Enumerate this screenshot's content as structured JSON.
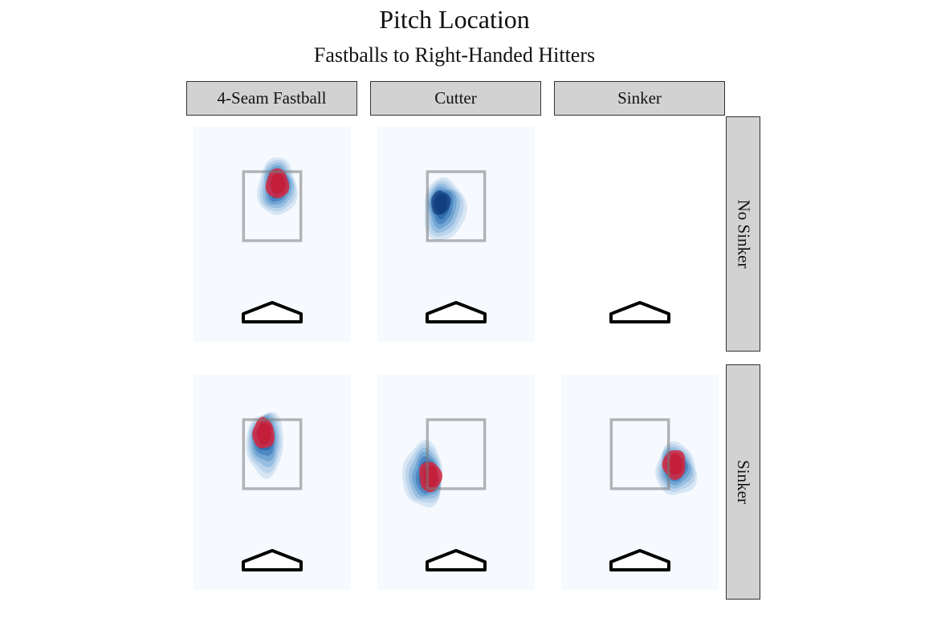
{
  "title": "Pitch Location",
  "subtitle": "Fastballs to Right-Handed Hitters",
  "col_labels": [
    "4-Seam Fastball",
    "Cutter",
    "Sinker"
  ],
  "row_labels": [
    "No Sinker",
    "Sinker"
  ],
  "colors": {
    "density_low": "#c6dbef",
    "density_mid": "#4a84c0",
    "density_high": "#08306b",
    "hot": "#d7263d",
    "strip_fill": "#d2d2d2",
    "panel_bg": "#f6f9fe"
  },
  "chart_data": {
    "type": "heatmap",
    "title": "Pitch Location",
    "subtitle": "Fastballs to Right-Handed Hitters",
    "facet_cols": [
      "4-Seam Fastball",
      "Cutter",
      "Sinker"
    ],
    "facet_rows": [
      "No Sinker",
      "Sinker"
    ],
    "units": "feet (catcher's view)",
    "strike_zone": {
      "x": [
        -0.83,
        0.83
      ],
      "z": [
        1.5,
        3.5
      ]
    },
    "panels": [
      {
        "row": "No Sinker",
        "col": "4-Seam Fastball",
        "empty": false,
        "center": [
          0.15,
          3.05
        ],
        "spread": [
          0.55,
          0.75
        ],
        "peak": [
          0.15,
          3.15
        ],
        "hot_spot": true
      },
      {
        "row": "No Sinker",
        "col": "Cutter",
        "empty": false,
        "center": [
          -0.35,
          2.4
        ],
        "spread": [
          0.6,
          0.8
        ],
        "peak": [
          -0.45,
          2.6
        ],
        "hot_spot": false
      },
      {
        "row": "No Sinker",
        "col": "Sinker",
        "empty": true
      },
      {
        "row": "Sinker",
        "col": "4-Seam Fastball",
        "empty": false,
        "center": [
          -0.2,
          2.8
        ],
        "spread": [
          0.55,
          0.8
        ],
        "peak": [
          -0.25,
          3.1
        ],
        "hot_spot": true
      },
      {
        "row": "Sinker",
        "col": "Cutter",
        "empty": false,
        "center": [
          -0.95,
          1.9
        ],
        "spread": [
          0.6,
          0.8
        ],
        "peak": [
          -0.75,
          1.85
        ],
        "hot_spot": true
      },
      {
        "row": "Sinker",
        "col": "Sinker",
        "empty": false,
        "center": [
          1.05,
          2.05
        ],
        "spread": [
          0.6,
          0.65
        ],
        "peak": [
          1.0,
          2.2
        ],
        "hot_spot": true
      }
    ]
  }
}
